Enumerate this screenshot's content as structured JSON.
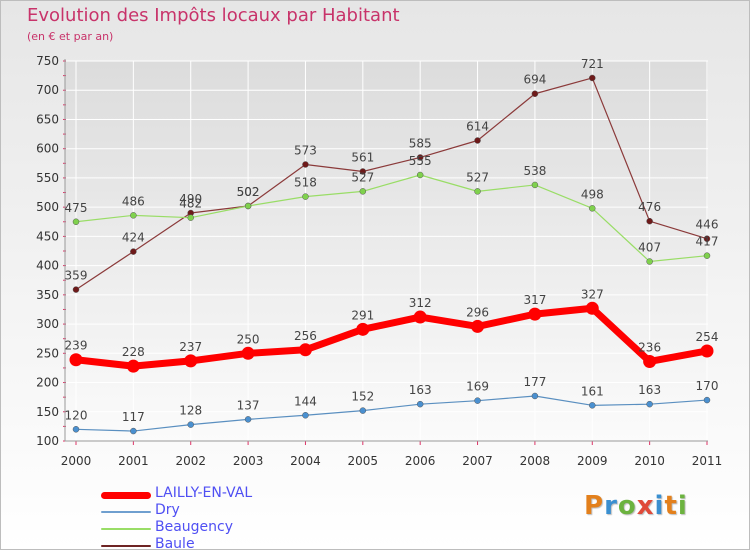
{
  "title": "Evolution des Impôts locaux par Habitant",
  "subtitle": "(en € et par an)",
  "brand": "Proxiti",
  "brand_colors": [
    "#e3801c",
    "#3a8fd0",
    "#6cb33f",
    "#e04a3a",
    "#3a8fd0",
    "#e3801c",
    "#6cb33f"
  ],
  "chart_data": {
    "type": "line",
    "x": [
      2000,
      2001,
      2002,
      2003,
      2004,
      2005,
      2006,
      2007,
      2008,
      2009,
      2010,
      2011
    ],
    "ylim": [
      100,
      750
    ],
    "yticks": [
      100,
      150,
      200,
      250,
      300,
      350,
      400,
      450,
      500,
      550,
      600,
      650,
      700,
      750
    ],
    "grid": true,
    "legend_position": "bottom-left",
    "series": [
      {
        "name": "LAILLY-EN-VAL",
        "color": "#ff0000",
        "values": [
          239,
          228,
          237,
          250,
          256,
          291,
          312,
          296,
          317,
          327,
          236,
          254
        ]
      },
      {
        "name": "Dry",
        "color": "#6f9fcf",
        "values": [
          120,
          117,
          128,
          137,
          144,
          152,
          163,
          169,
          177,
          161,
          163,
          170
        ]
      },
      {
        "name": "Beaugency",
        "color": "#99dd66",
        "values": [
          475,
          486,
          482,
          502,
          518,
          527,
          555,
          527,
          538,
          498,
          407,
          417
        ]
      },
      {
        "name": "Baule",
        "color": "#6e2424",
        "values": [
          359,
          424,
          490,
          502,
          573,
          561,
          585,
          614,
          694,
          721,
          476,
          446
        ]
      }
    ]
  }
}
